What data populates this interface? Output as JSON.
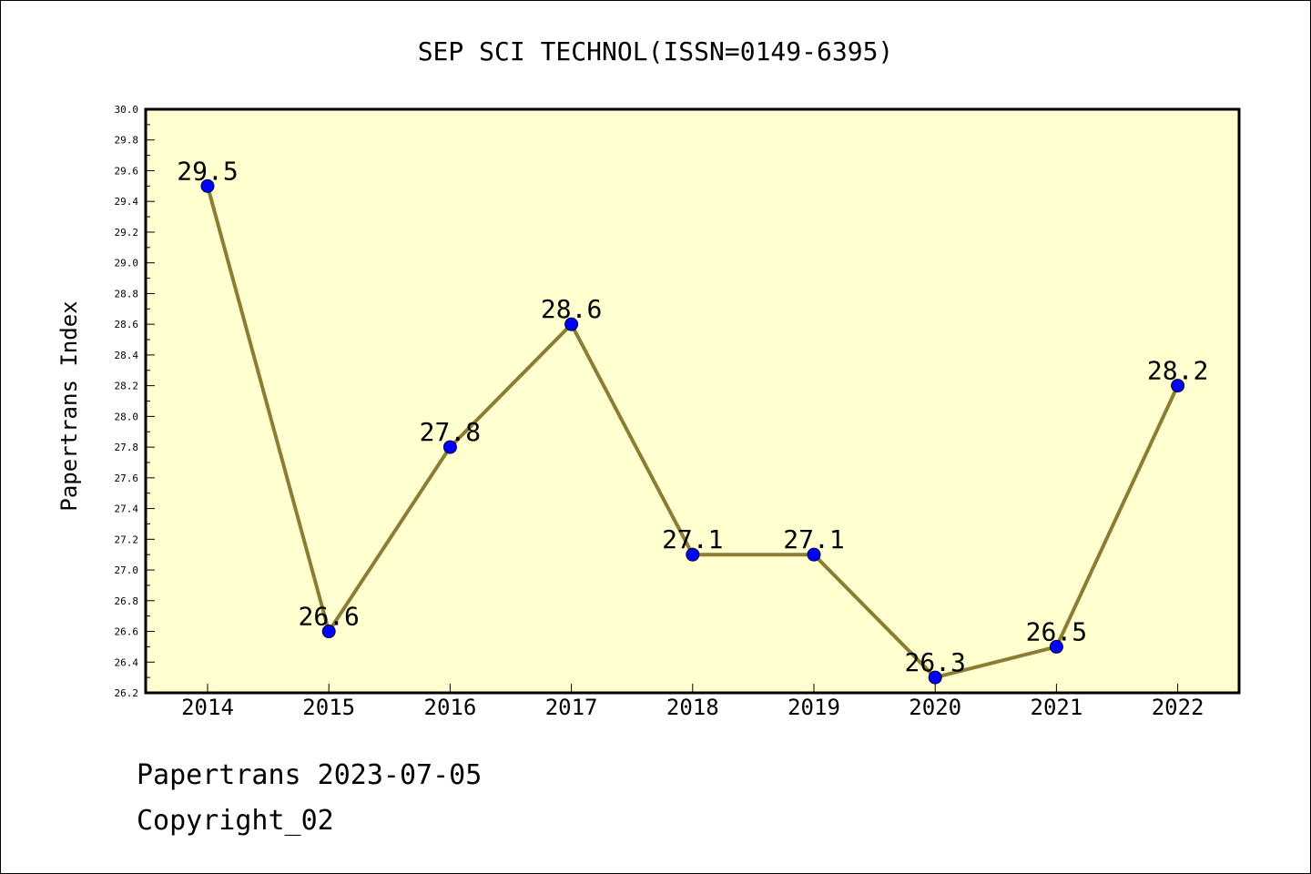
{
  "chart_data": {
    "type": "line",
    "title": "SEP SCI TECHNOL(ISSN=0149-6395)",
    "xlabel": "",
    "ylabel": "Papertrans Index",
    "categories": [
      "2014",
      "2015",
      "2016",
      "2017",
      "2018",
      "2019",
      "2020",
      "2021",
      "2022"
    ],
    "series": [
      {
        "values": [
          29.5,
          26.6,
          27.8,
          28.6,
          27.1,
          27.1,
          26.3,
          26.5,
          28.2
        ]
      }
    ],
    "data_labels": [
      "29.5",
      "26.6",
      "27.8",
      "28.6",
      "27.1",
      "27.1",
      "26.3",
      "26.5",
      "28.2"
    ],
    "ylim": [
      26.2,
      30.0
    ],
    "yticks": [
      "26.2",
      "26.4",
      "26.6",
      "26.8",
      "27.0",
      "27.2",
      "27.4",
      "27.6",
      "27.8",
      "28.0",
      "28.2",
      "28.4",
      "28.6",
      "28.8",
      "29.0",
      "29.2",
      "29.4",
      "29.6",
      "29.8",
      "30.0"
    ],
    "grid": false,
    "legend": "none",
    "colors": {
      "plot_background": "#ffffd0",
      "line": "#8b7d35",
      "marker": "#0000ff"
    }
  },
  "footer": {
    "date_line": "Papertrans 2023-07-05",
    "copyright": "Copyright_02"
  }
}
